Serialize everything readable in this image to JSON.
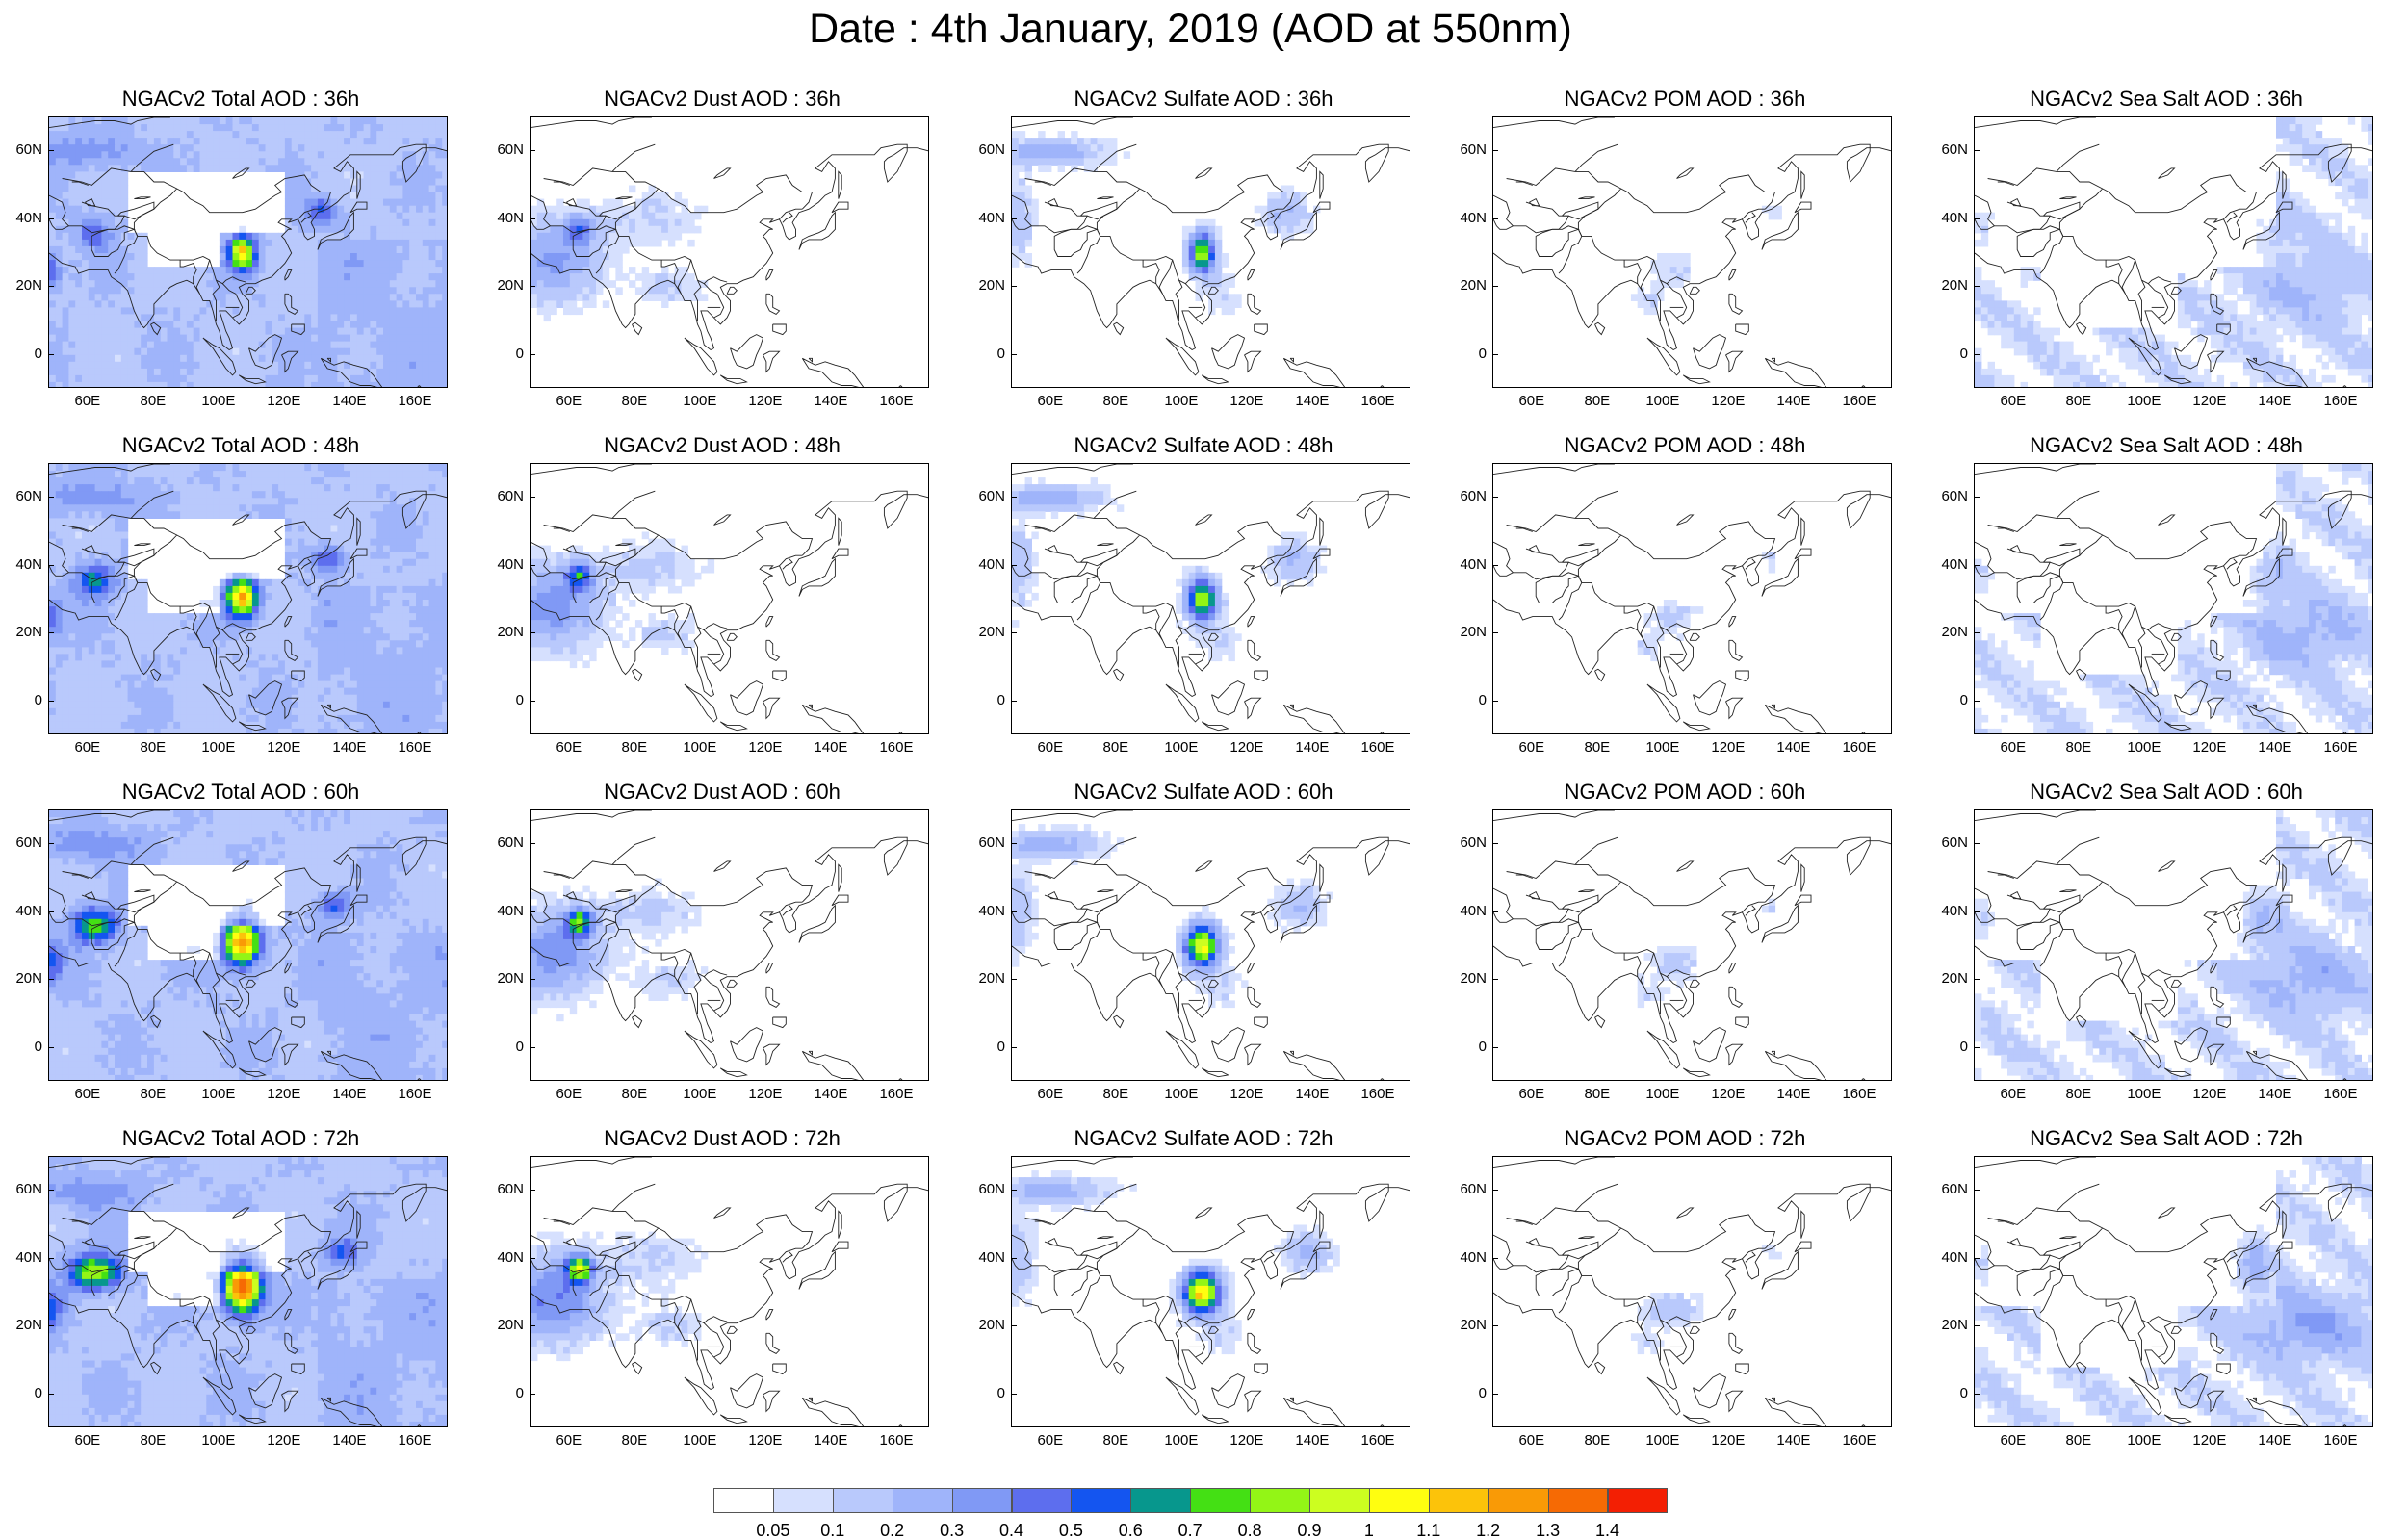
{
  "title": "Date : 4th January, 2019 (AOD at 550nm)",
  "axes": {
    "x_ticks": [
      "60E",
      "80E",
      "100E",
      "120E",
      "140E",
      "160E"
    ],
    "x_tick_values": [
      60,
      80,
      100,
      120,
      140,
      160
    ],
    "x_range": [
      48,
      170
    ],
    "y_ticks": [
      "60N",
      "40N",
      "20N",
      "0"
    ],
    "y_tick_values": [
      60,
      40,
      20,
      0
    ],
    "y_range": [
      -10,
      70
    ]
  },
  "rows": [
    {
      "hour": "36h",
      "titles": [
        "NGACv2 Total AOD : 36h",
        "NGACv2 Dust AOD : 36h",
        "NGACv2 Sulfate AOD : 36h",
        "NGACv2 POM AOD : 36h",
        "NGACv2 Sea Salt AOD : 36h"
      ]
    },
    {
      "hour": "48h",
      "titles": [
        "NGACv2 Total AOD : 48h",
        "NGACv2 Dust AOD : 48h",
        "NGACv2 Sulfate AOD : 48h",
        "NGACv2 POM AOD : 48h",
        "NGACv2 Sea Salt AOD : 48h"
      ]
    },
    {
      "hour": "60h",
      "titles": [
        "NGACv2 Total AOD : 60h",
        "NGACv2 Dust AOD : 60h",
        "NGACv2 Sulfate AOD : 60h",
        "NGACv2 POM AOD : 60h",
        "NGACv2 Sea Salt AOD : 60h"
      ]
    },
    {
      "hour": "72h",
      "titles": [
        "NGACv2 Total AOD : 72h",
        "NGACv2 Dust AOD : 72h",
        "NGACv2 Sulfate AOD : 72h",
        "NGACv2 POM AOD : 72h",
        "NGACv2 Sea Salt  AOD : 72h"
      ]
    }
  ],
  "colorbar": {
    "labels": [
      "0.05",
      "0.1",
      "0.2",
      "0.3",
      "0.4",
      "0.5",
      "0.6",
      "0.7",
      "0.8",
      "0.9",
      "1",
      "1.1",
      "1.2",
      "1.3",
      "1.4"
    ],
    "colors": [
      "#ffffff",
      "#d6e0fe",
      "#b9c9fc",
      "#9fb4fa",
      "#8099f5",
      "#5d6eee",
      "#1455f0",
      "#07978d",
      "#44e014",
      "#93f516",
      "#ccfe20",
      "#fffe10",
      "#fcc30a",
      "#f99a06",
      "#f66a04",
      "#f31f03"
    ]
  }
}
